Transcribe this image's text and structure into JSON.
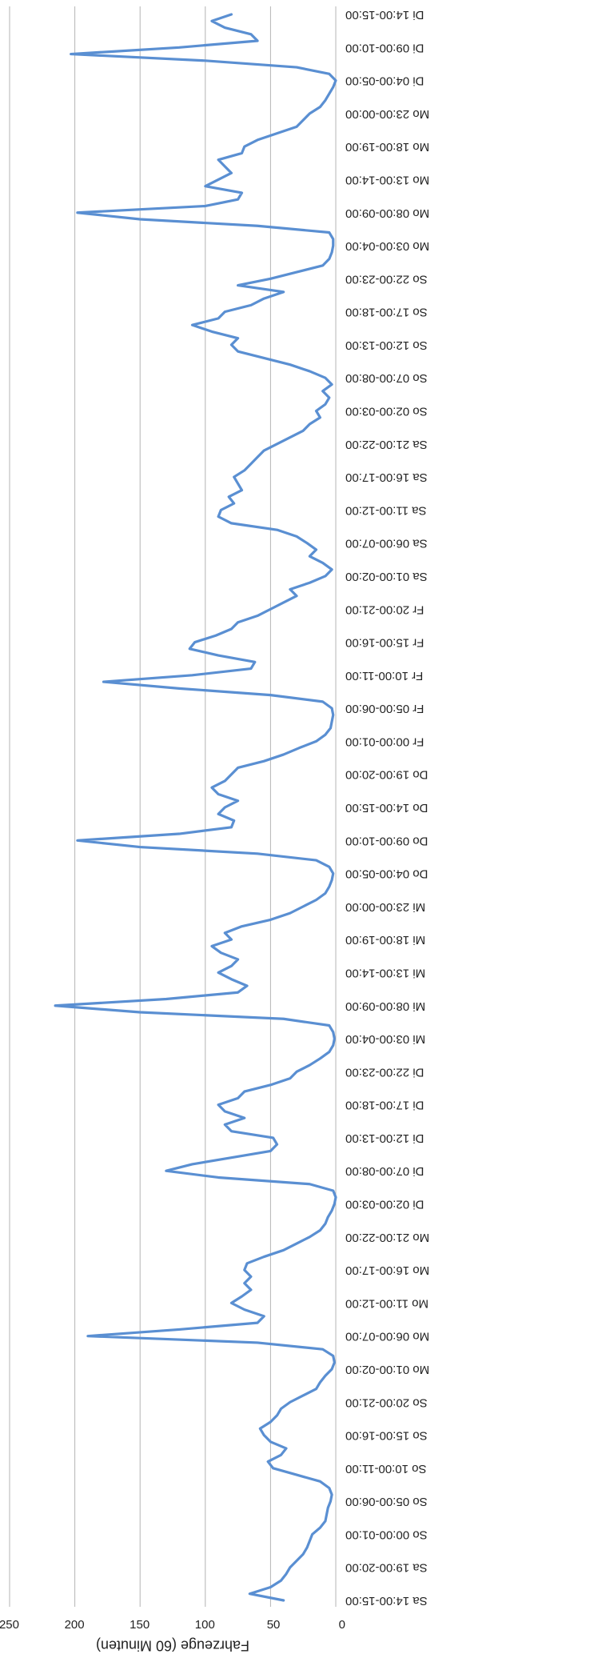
{
  "chart_data": {
    "type": "line",
    "y_label": "Fahrzeuge (60 Minuten)",
    "categories": [
      "Sa 14:00-15:00",
      null,
      null,
      null,
      null,
      "Sa 19:00-20:00",
      null,
      null,
      null,
      null,
      "So 00:00-01:00",
      null,
      null,
      null,
      null,
      "So 05:00-06:00",
      null,
      null,
      null,
      null,
      "So 10:00-11:00",
      null,
      null,
      null,
      null,
      "So 15:00-16:00",
      null,
      null,
      null,
      null,
      "So 20:00-21:00",
      null,
      null,
      null,
      null,
      "Mo 01:00-02:00",
      null,
      null,
      null,
      null,
      "Mo 06:00-07:00",
      null,
      null,
      null,
      null,
      "Mo 11:00-12:00",
      null,
      null,
      null,
      null,
      "Mo 16:00-17:00",
      null,
      null,
      null,
      null,
      "Mo 21:00-22:00",
      null,
      null,
      null,
      null,
      "Di 02:00-03:00",
      null,
      null,
      null,
      null,
      "Di 07:00-08:00",
      null,
      null,
      null,
      null,
      "Di 12:00-13:00",
      null,
      null,
      null,
      null,
      "Di 17:00-18:00",
      null,
      null,
      null,
      null,
      "Di 22:00-23:00",
      null,
      null,
      null,
      null,
      "Mi 03:00-04:00",
      null,
      null,
      null,
      null,
      "Mi 08:00-09:00",
      null,
      null,
      null,
      null,
      "Mi 13:00-14:00",
      null,
      null,
      null,
      null,
      "Mi 18:00-19:00",
      null,
      null,
      null,
      null,
      "Mi 23:00-00:00",
      null,
      null,
      null,
      null,
      "Do 04:00-05:00",
      null,
      null,
      null,
      null,
      "Do 09:00-10:00",
      null,
      null,
      null,
      null,
      "Do 14:00-15:00",
      null,
      null,
      null,
      null,
      "Do 19:00-20:00",
      null,
      null,
      null,
      null,
      "Fr 00:00-01:00",
      null,
      null,
      null,
      null,
      "Fr 05:00-06:00",
      null,
      null,
      null,
      null,
      "Fr 10:00-11:00",
      null,
      null,
      null,
      null,
      "Fr 15:00-16:00",
      null,
      null,
      null,
      null,
      "Fr 20:00-21:00",
      null,
      null,
      null,
      null,
      "Sa 01:00-02:00",
      null,
      null,
      null,
      null,
      "Sa 06:00-07:00",
      null,
      null,
      null,
      null,
      "Sa 11:00-12:00",
      null,
      null,
      null,
      null,
      "Sa 16:00-17:00",
      null,
      null,
      null,
      null,
      "Sa 21:00-22:00",
      null,
      null,
      null,
      null,
      "So 02:00-03:00",
      null,
      null,
      null,
      null,
      "So 07:00-08:00",
      null,
      null,
      null,
      null,
      "So 12:00-13:00",
      null,
      null,
      null,
      null,
      "So 17:00-18:00",
      null,
      null,
      null,
      null,
      "So 22:00-23:00",
      null,
      null,
      null,
      null,
      "Mo 03:00-04:00",
      null,
      null,
      null,
      null,
      "Mo 08:00-09:00",
      null,
      null,
      null,
      null,
      "Mo 13:00-14:00",
      null,
      null,
      null,
      null,
      "Mo 18:00-19:00",
      null,
      null,
      null,
      null,
      "Mo 23:00-00:00",
      null,
      null,
      null,
      null,
      "Di 04:00-05:00",
      null,
      null,
      null,
      null,
      "Di 09:00-10:00",
      null,
      null,
      null,
      null,
      "Di 14:00-15:00"
    ],
    "values": [
      40,
      66,
      50,
      42,
      38,
      35,
      30,
      25,
      22,
      20,
      18,
      12,
      8,
      7,
      6,
      4,
      3,
      5,
      12,
      30,
      48,
      52,
      42,
      38,
      50,
      55,
      58,
      50,
      45,
      42,
      35,
      25,
      15,
      12,
      8,
      3,
      1,
      2,
      10,
      60,
      190,
      120,
      60,
      55,
      70,
      80,
      72,
      65,
      70,
      65,
      70,
      68,
      55,
      40,
      30,
      20,
      12,
      8,
      6,
      3,
      1,
      0,
      2,
      20,
      90,
      130,
      110,
      80,
      50,
      45,
      48,
      80,
      85,
      70,
      85,
      90,
      75,
      70,
      50,
      35,
      30,
      20,
      12,
      5,
      2,
      1,
      2,
      5,
      40,
      150,
      215,
      130,
      75,
      68,
      80,
      90,
      80,
      75,
      88,
      95,
      80,
      85,
      72,
      50,
      35,
      25,
      15,
      8,
      5,
      3,
      2,
      5,
      15,
      60,
      150,
      198,
      120,
      80,
      78,
      90,
      85,
      75,
      90,
      95,
      85,
      80,
      75,
      55,
      40,
      28,
      15,
      8,
      4,
      3,
      2,
      3,
      10,
      50,
      120,
      178,
      110,
      65,
      62,
      90,
      112,
      108,
      92,
      80,
      75,
      60,
      50,
      40,
      30,
      35,
      20,
      8,
      3,
      10,
      20,
      15,
      22,
      30,
      45,
      80,
      90,
      88,
      78,
      82,
      72,
      75,
      78,
      70,
      65,
      60,
      55,
      45,
      35,
      25,
      20,
      12,
      15,
      8,
      5,
      10,
      3,
      8,
      20,
      35,
      55,
      75,
      80,
      75,
      95,
      110,
      90,
      85,
      65,
      55,
      40,
      75,
      50,
      30,
      10,
      5,
      3,
      2,
      2,
      5,
      60,
      150,
      198,
      100,
      75,
      72,
      100,
      90,
      80,
      85,
      90,
      72,
      70,
      60,
      45,
      30,
      25,
      20,
      12,
      8,
      5,
      2,
      0,
      5,
      30,
      100,
      203,
      120,
      60,
      65,
      85,
      95,
      80
    ],
    "color": "#5a8fd2",
    "ylim": [
      0,
      250
    ],
    "yticks": [
      0,
      50,
      100,
      150,
      200,
      250
    ],
    "grid": true
  }
}
